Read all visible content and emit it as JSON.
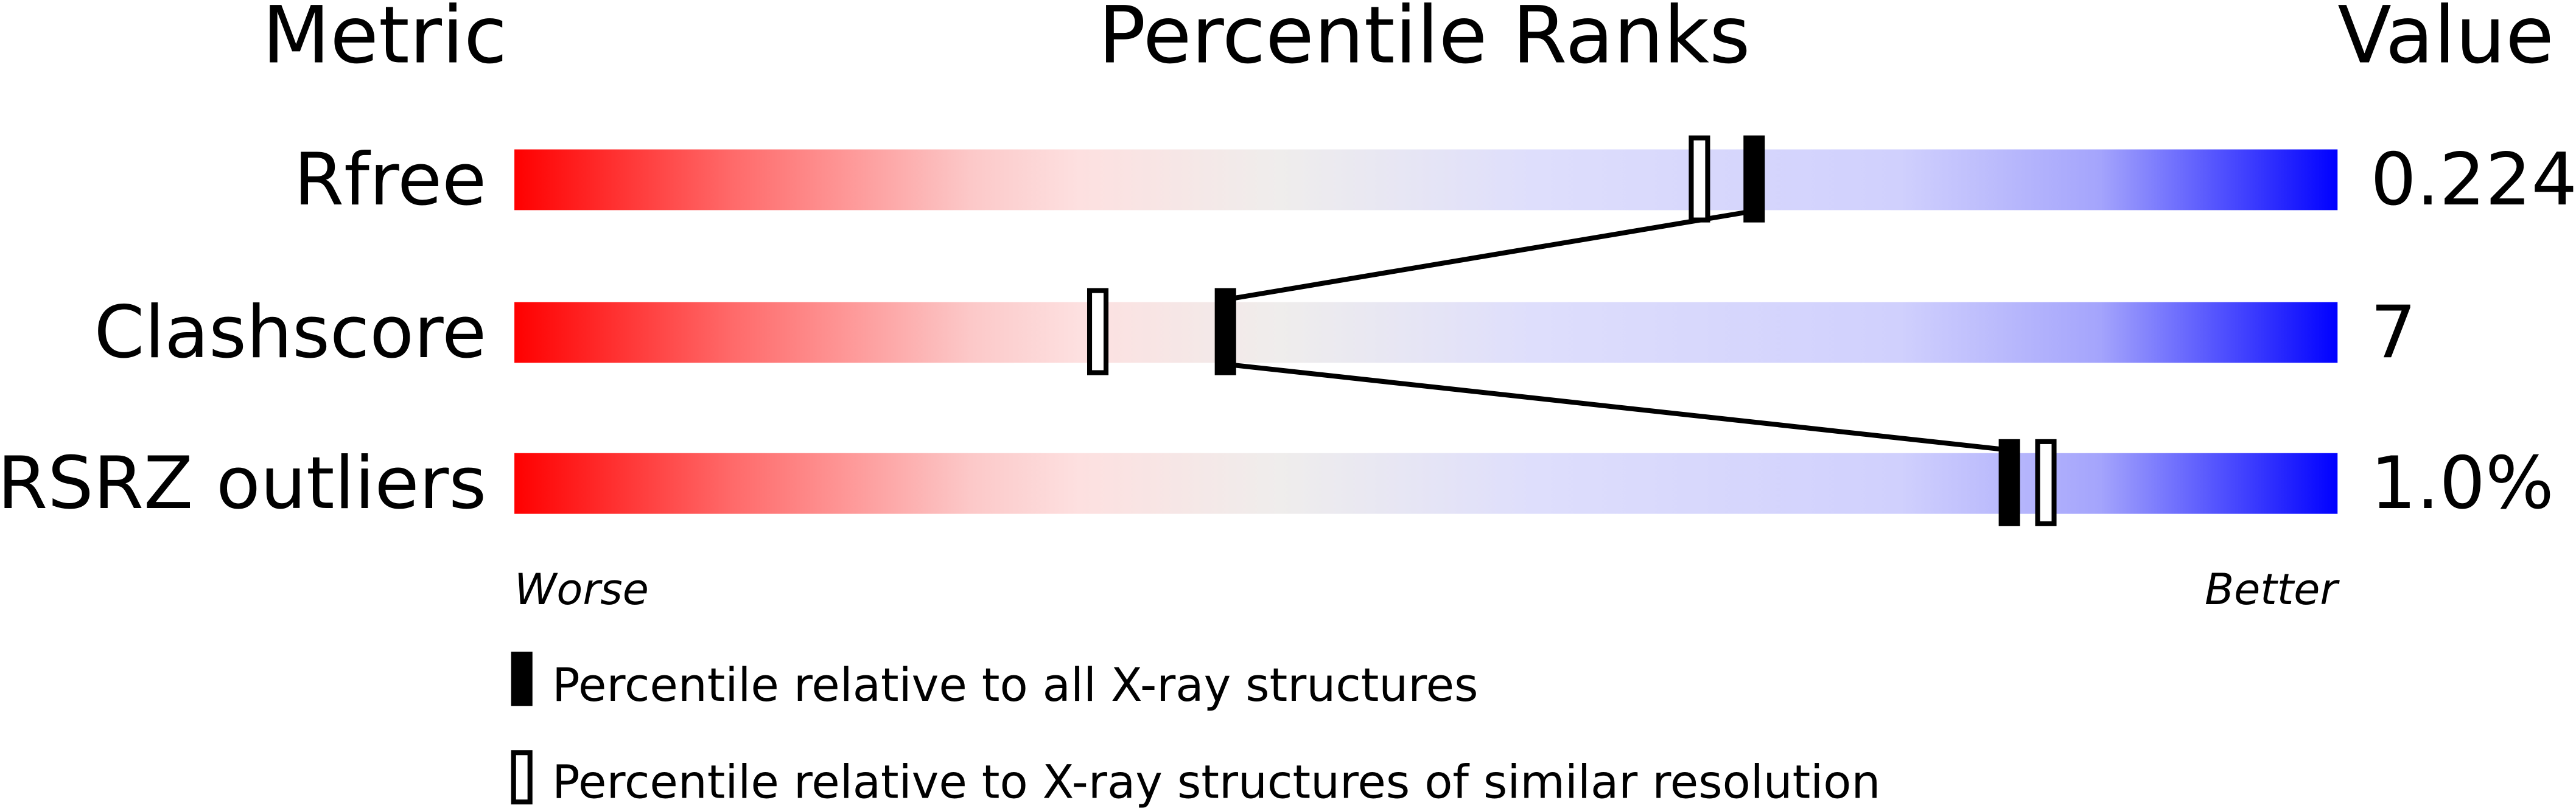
{
  "chart_data": {
    "type": "percentile-slider",
    "headers": {
      "metric": "Metric",
      "title": "Percentile Ranks",
      "value": "Value"
    },
    "xlim": [
      0,
      100
    ],
    "axis_labels": {
      "left": "Worse",
      "right": "Better"
    },
    "gradient_colors": [
      "#ff0000",
      "#eeeeee",
      "#0000ff"
    ],
    "metrics": [
      {
        "name": "Rfree",
        "value": "0.224",
        "percentile_all": 68,
        "percentile_similar": 65
      },
      {
        "name": "Clashscore",
        "value": "7",
        "percentile_all": 39,
        "percentile_similar": 32
      },
      {
        "name": "RSRZ outliers",
        "value": "1.0%",
        "percentile_all": 82,
        "percentile_similar": 84
      }
    ],
    "legend": [
      {
        "marker": "filled",
        "label": "Percentile relative to all X-ray structures"
      },
      {
        "marker": "open",
        "label": "Percentile relative to X-ray structures of similar resolution"
      }
    ]
  }
}
